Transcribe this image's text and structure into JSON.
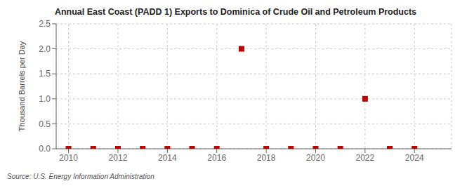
{
  "chart_data": {
    "type": "scatter",
    "title": "Annual East Coast (PADD 1) Exports to Dominica of Crude Oil and Petroleum Products",
    "ylabel": "Thousand Barrels per Day",
    "source": "Source: U.S. Energy Information Administration",
    "x": [
      2010,
      2011,
      2012,
      2013,
      2014,
      2015,
      2016,
      2017,
      2018,
      2019,
      2020,
      2021,
      2022,
      2023,
      2024
    ],
    "values": [
      0.0,
      0.0,
      0.0,
      0.0,
      0.0,
      0.0,
      0.0,
      2.0,
      0.0,
      0.0,
      0.0,
      0.0,
      1.0,
      0.0,
      0.0
    ],
    "color": "#bb0000",
    "marker": "square",
    "xlim": [
      2009.5,
      2025.5
    ],
    "ylim": [
      0.0,
      2.5
    ],
    "xticks": [
      2010,
      2012,
      2014,
      2016,
      2018,
      2020,
      2022,
      2024
    ],
    "yticks": [
      {
        "value": 0.0,
        "label": "0.0"
      },
      0.5,
      {
        "value": 1.0,
        "label": "1.0"
      },
      1.5,
      {
        "value": 2.0,
        "label": "2.0"
      },
      2.5
    ],
    "grid": true
  }
}
